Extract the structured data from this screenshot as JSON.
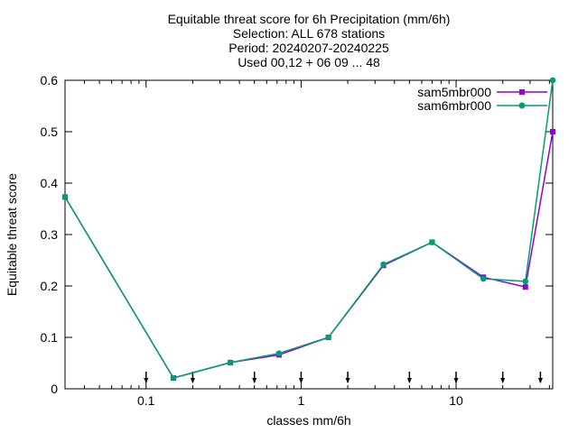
{
  "chart_data": {
    "type": "line",
    "title_lines": [
      "Equitable threat score  for 6h Precipitation (mm/6h)",
      "Selection: ALL    678 stations",
      "Period: 20240207-20240225",
      "Used 00,12 + 06 09 ... 48"
    ],
    "xlabel": "classes mm/6h",
    "ylabel": "Equitable threat score",
    "x_scale": "log",
    "xlim": [
      0.03,
      42
    ],
    "ylim": [
      0,
      0.6
    ],
    "x_ticks": [
      {
        "value": 0.1,
        "label": "0.1"
      },
      {
        "value": 1,
        "label": "1"
      },
      {
        "value": 10,
        "label": "10"
      }
    ],
    "y_ticks": [
      {
        "value": 0,
        "label": "0"
      },
      {
        "value": 0.1,
        "label": "0.1"
      },
      {
        "value": 0.2,
        "label": "0.2"
      },
      {
        "value": 0.3,
        "label": "0.3"
      },
      {
        "value": 0.4,
        "label": "0.4"
      },
      {
        "value": 0.5,
        "label": "0.5"
      },
      {
        "value": 0.6,
        "label": "0.6"
      }
    ],
    "class_markers": [
      0.1,
      0.2,
      0.5,
      1,
      2,
      5,
      10,
      20,
      35
    ],
    "legend_position": "top-right",
    "grid": false,
    "series": [
      {
        "name": "sam5mbr000",
        "color": "#9400d3",
        "marker": "square",
        "x": [
          0.03,
          0.15,
          0.35,
          0.72,
          1.5,
          3.4,
          7.0,
          15.0,
          28.0,
          42.0
        ],
        "y": [
          0.373,
          0.021,
          0.051,
          0.066,
          0.1,
          0.24,
          0.285,
          0.217,
          0.198,
          0.5
        ]
      },
      {
        "name": "sam6mbr000",
        "color": "#009e73",
        "marker": "circle",
        "x": [
          0.03,
          0.15,
          0.35,
          0.72,
          1.5,
          3.4,
          7.0,
          15.0,
          28.0,
          42.0
        ],
        "y": [
          0.373,
          0.021,
          0.051,
          0.069,
          0.1,
          0.242,
          0.285,
          0.214,
          0.209,
          0.6
        ]
      }
    ]
  }
}
